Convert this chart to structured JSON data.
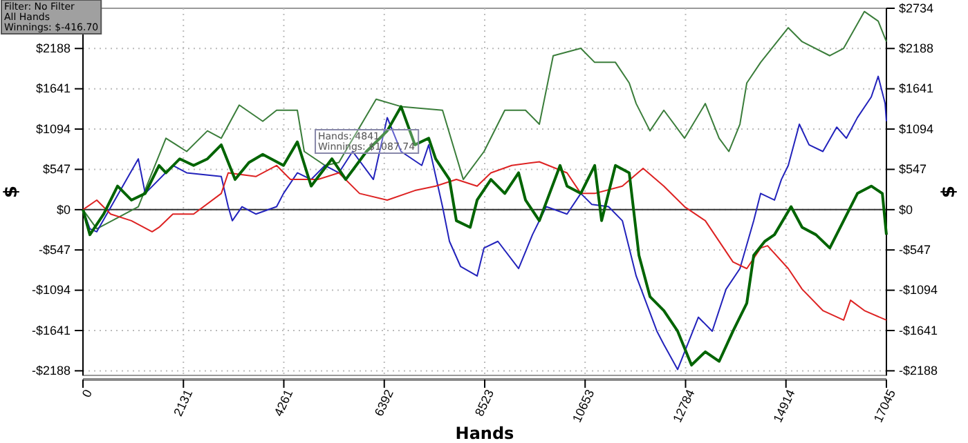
{
  "chart_data": {
    "type": "line",
    "xlabel": "Hands",
    "ylabel": "$",
    "y2label": "$",
    "xlim": [
      0,
      17045
    ],
    "xticks": [
      0,
      2131,
      4261,
      6392,
      8523,
      10653,
      12784,
      14914,
      17045
    ],
    "ylim": [
      -2250,
      2734
    ],
    "yticks": [
      {
        "value": -2188,
        "label": "-$2188"
      },
      {
        "value": -1641,
        "label": "-$1641"
      },
      {
        "value": -1094,
        "label": "-$1094"
      },
      {
        "value": -547,
        "label": "-$547"
      },
      {
        "value": 0,
        "label": "$0"
      },
      {
        "value": 547,
        "label": "$547"
      },
      {
        "value": 1094,
        "label": "$1094"
      },
      {
        "value": 1641,
        "label": "$1641"
      },
      {
        "value": 2188,
        "label": "$2188"
      }
    ],
    "y2lim": [
      -2250,
      2734
    ],
    "y2ticks": [
      {
        "value": -2188,
        "label": "-$2188"
      },
      {
        "value": -1641,
        "label": "-$1641"
      },
      {
        "value": -1094,
        "label": "-$1094"
      },
      {
        "value": -547,
        "label": "-$547"
      },
      {
        "value": 0,
        "label": "$0"
      },
      {
        "value": 547,
        "label": "$547"
      },
      {
        "value": 1094,
        "label": "$1094"
      },
      {
        "value": 1641,
        "label": "$1641"
      },
      {
        "value": 2188,
        "label": "$2188"
      },
      {
        "value": 2734,
        "label": "$2734"
      }
    ],
    "grid": true,
    "line_style": "solid",
    "marker": "none",
    "ref_lines": [
      {
        "axis": "y",
        "value": 0,
        "color": "#333333"
      }
    ],
    "annotations": [
      "Filter: No Filter\nAll Hands\nWinnings: $-416.70",
      "Hands: 4841\nWinnings: $1087.74"
    ],
    "series": [
      {
        "color": "#3a7d3a",
        "x": [
          0,
          293,
          1174,
          1760,
          2200,
          2641,
          2934,
          3315,
          3814,
          4108,
          4548,
          4694,
          5134,
          5428,
          6220,
          6748,
          7628,
          8068,
          8509,
          8949,
          9389,
          9682,
          9976,
          10562,
          10856,
          11296,
          11589,
          11736,
          12029,
          12323,
          12763,
          13203,
          13496,
          13702,
          13937,
          14083,
          14377,
          14963,
          15257,
          15844,
          16137,
          16577,
          16871,
          17045
        ],
        "values": [
          0,
          -260,
          40,
          970,
          790,
          1070,
          970,
          1420,
          1200,
          1350,
          1350,
          790,
          600,
          640,
          1500,
          1400,
          1350,
          410,
          790,
          1350,
          1350,
          1160,
          2090,
          2190,
          2000,
          2000,
          1720,
          1440,
          1070,
          1350,
          970,
          1440,
          970,
          790,
          1160,
          1720,
          2000,
          2470,
          2280,
          2090,
          2190,
          2690,
          2560,
          2280
        ]
      },
      {
        "color": "#2222bb",
        "x": [
          0,
          147,
          293,
          1174,
          1320,
          1907,
          2200,
          2934,
          3081,
          3169,
          3374,
          3667,
          4108,
          4254,
          4548,
          4841,
          5134,
          5428,
          5721,
          6161,
          6455,
          6748,
          7188,
          7335,
          7628,
          7775,
          8010,
          8362,
          8509,
          8802,
          9242,
          9536,
          9829,
          10269,
          10562,
          10797,
          11149,
          11443,
          11736,
          12176,
          12323,
          12616,
          13056,
          13350,
          13643,
          13937,
          14230,
          14377,
          14670,
          14817,
          14963,
          15198,
          15404,
          15697,
          15991,
          16196,
          16430,
          16724,
          16871,
          17018,
          17045
        ],
        "values": [
          0,
          -260,
          -300,
          690,
          220,
          600,
          500,
          450,
          40,
          -150,
          40,
          -60,
          40,
          220,
          500,
          410,
          600,
          500,
          790,
          410,
          1250,
          790,
          600,
          880,
          40,
          -430,
          -770,
          -900,
          -520,
          -430,
          -800,
          -340,
          40,
          -60,
          220,
          70,
          40,
          -150,
          -900,
          -1650,
          -1830,
          -2170,
          -1460,
          -1650,
          -1080,
          -800,
          -150,
          220,
          130,
          410,
          600,
          1160,
          880,
          790,
          1120,
          970,
          1250,
          1530,
          1810,
          1440,
          1200
        ]
      },
      {
        "color": "#dd2222",
        "x": [
          0,
          293,
          587,
          1027,
          1467,
          1614,
          1907,
          2347,
          2934,
          3081,
          3667,
          4108,
          4401,
          4988,
          5428,
          5868,
          6455,
          7042,
          7482,
          7922,
          8362,
          8655,
          9096,
          9682,
          10269,
          10562,
          10856,
          11443,
          11883,
          12323,
          12763,
          13203,
          13790,
          14083,
          14377,
          14523,
          14963,
          15257,
          15697,
          16137,
          16284,
          16577,
          17045
        ],
        "values": [
          0,
          130,
          -60,
          -150,
          -300,
          -240,
          -60,
          -60,
          220,
          500,
          450,
          600,
          410,
          410,
          500,
          220,
          130,
          260,
          320,
          410,
          320,
          500,
          600,
          650,
          500,
          220,
          220,
          320,
          560,
          320,
          40,
          -150,
          -710,
          -800,
          -520,
          -490,
          -800,
          -1080,
          -1370,
          -1500,
          -1230,
          -1370,
          -1500
        ]
      },
      {
        "color": "#006400",
        "x": [
          0,
          147,
          440,
          734,
          1027,
          1320,
          1614,
          1760,
          2054,
          2347,
          2641,
          2934,
          3227,
          3521,
          3814,
          4254,
          4548,
          4841,
          5281,
          5575,
          6015,
          6455,
          6748,
          7042,
          7335,
          7482,
          7775,
          7922,
          8215,
          8362,
          8655,
          8949,
          9242,
          9389,
          9682,
          10122,
          10269,
          10562,
          10856,
          11003,
          11296,
          11589,
          11795,
          12029,
          12323,
          12616,
          12910,
          13203,
          13496,
          13790,
          14083,
          14230,
          14465,
          14670,
          15022,
          15257,
          15550,
          15844,
          16137,
          16430,
          16724,
          16959,
          17045
        ],
        "values": [
          0,
          -340,
          -60,
          320,
          130,
          220,
          600,
          500,
          690,
          600,
          690,
          880,
          410,
          640,
          750,
          600,
          920,
          320,
          690,
          410,
          790,
          1070,
          1400,
          880,
          970,
          690,
          410,
          -150,
          -240,
          130,
          410,
          220,
          500,
          130,
          -150,
          600,
          320,
          220,
          600,
          -150,
          600,
          500,
          -620,
          -1180,
          -1370,
          -1650,
          -2110,
          -1930,
          -2060,
          -1650,
          -1270,
          -620,
          -430,
          -340,
          40,
          -240,
          -340,
          -520,
          -150,
          220,
          320,
          220,
          -340
        ]
      }
    ]
  }
}
